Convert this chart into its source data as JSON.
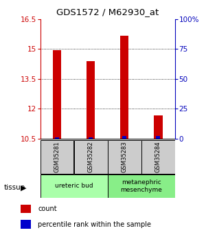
{
  "title": "GDS1572 / M62930_at",
  "samples": [
    "GSM35281",
    "GSM35282",
    "GSM35283",
    "GSM35284"
  ],
  "count_values": [
    14.95,
    14.4,
    15.65,
    11.65
  ],
  "percentile_values": [
    10.58,
    10.58,
    10.62,
    10.62
  ],
  "ylim": [
    10.5,
    16.5
  ],
  "yticks_left": [
    10.5,
    12,
    13.5,
    15,
    16.5
  ],
  "yticks_left_labels": [
    "10.5",
    "12",
    "13.5",
    "15",
    "16.5"
  ],
  "yticks_right_vals": [
    10.5,
    12,
    13.5,
    15,
    16.5
  ],
  "yticks_right_labels": [
    "0",
    "25",
    "50",
    "75",
    "100%"
  ],
  "bar_bottom": 10.5,
  "count_color": "#cc0000",
  "percentile_color": "#0000cc",
  "tissue_groups": [
    {
      "label": "ureteric bud",
      "samples": [
        0,
        1
      ],
      "color": "#aaffaa"
    },
    {
      "label": "metanephric\nmesenchyme",
      "samples": [
        2,
        3
      ],
      "color": "#88ee88"
    }
  ],
  "legend_items": [
    {
      "color": "#cc0000",
      "label": "count"
    },
    {
      "color": "#0000cc",
      "label": "percentile rank within the sample"
    }
  ],
  "left_axis_color": "#cc0000",
  "right_axis_color": "#0000bb",
  "bar_width": 0.25,
  "pct_bar_width": 0.12,
  "sample_box_color": "#cccccc"
}
